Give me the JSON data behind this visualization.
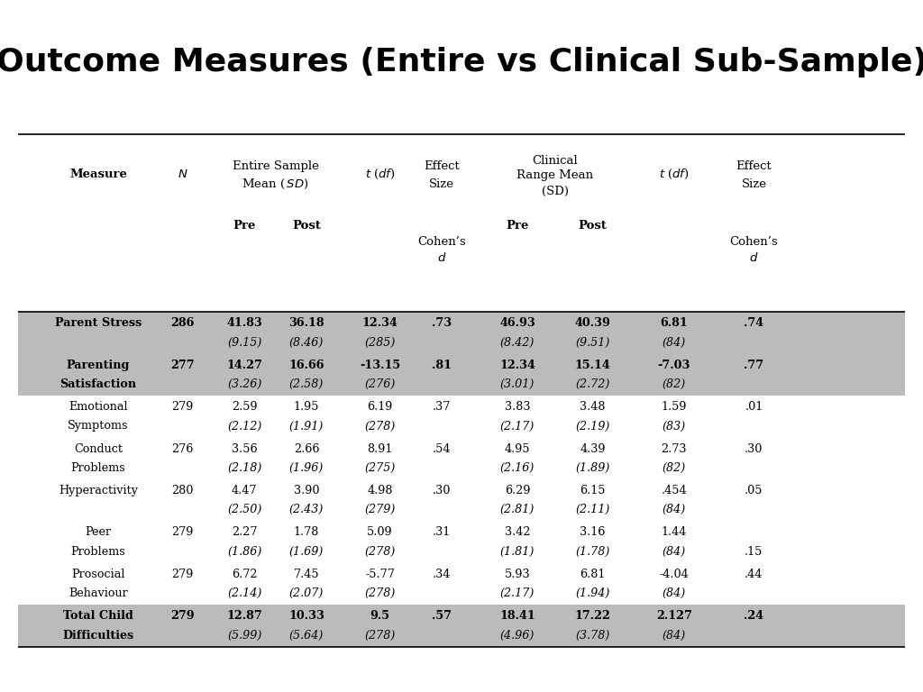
{
  "title": "Outcome Measures (Entire vs Clinical Sub-Sample)",
  "title_fontsize": 26,
  "title_fontweight": "bold",
  "background_color": "#ffffff",
  "shaded_bg": "#bbbbbb",
  "rows": [
    {
      "measure": [
        "Parent Stress",
        ""
      ],
      "n": "286",
      "pre": "41.83",
      "pre_sd": "(9.15)",
      "post": "36.18",
      "post_sd": "(8.46)",
      "t": "12.34",
      "t_df": "(285)",
      "cohens_d": ".73",
      "clin_pre": "46.93",
      "clin_pre_sd": "(8.42)",
      "clin_post": "40.39",
      "clin_post_sd": "(9.51)",
      "clin_t": "6.81",
      "clin_t_df": "(84)",
      "clin_cohens_d": ".74",
      "clin_cohens_d_row": 1,
      "shaded": true,
      "bold": true
    },
    {
      "measure": [
        "Parenting",
        "Satisfaction"
      ],
      "n": "277",
      "pre": "14.27",
      "pre_sd": "(3.26)",
      "post": "16.66",
      "post_sd": "(2.58)",
      "t": "-13.15",
      "t_df": "(276)",
      "cohens_d": ".81",
      "clin_pre": "12.34",
      "clin_pre_sd": "(3.01)",
      "clin_post": "15.14",
      "clin_post_sd": "(2.72)",
      "clin_t": "-7.03",
      "clin_t_df": "(82)",
      "clin_cohens_d": ".77",
      "clin_cohens_d_row": 1,
      "shaded": true,
      "bold": true
    },
    {
      "measure": [
        "Emotional",
        "Symptoms"
      ],
      "n": "279",
      "pre": "2.59",
      "pre_sd": "(2.12)",
      "post": "1.95",
      "post_sd": "(1.91)",
      "t": "6.19",
      "t_df": "(278)",
      "cohens_d": ".37",
      "clin_pre": "3.83",
      "clin_pre_sd": "(2.17)",
      "clin_post": "3.48",
      "clin_post_sd": "(2.19)",
      "clin_t": "1.59",
      "clin_t_df": "(83)",
      "clin_cohens_d": ".01",
      "clin_cohens_d_row": 1,
      "shaded": false,
      "bold": false
    },
    {
      "measure": [
        "Conduct",
        "Problems"
      ],
      "n": "276",
      "pre": "3.56",
      "pre_sd": "(2.18)",
      "post": "2.66",
      "post_sd": "(1.96)",
      "t": "8.91",
      "t_df": "(275)",
      "cohens_d": ".54",
      "clin_pre": "4.95",
      "clin_pre_sd": "(2.16)",
      "clin_post": "4.39",
      "clin_post_sd": "(1.89)",
      "clin_t": "2.73",
      "clin_t_df": "(82)",
      "clin_cohens_d": ".30",
      "clin_cohens_d_row": 1,
      "shaded": false,
      "bold": false
    },
    {
      "measure": [
        "Hyperactivity",
        ""
      ],
      "n": "280",
      "pre": "4.47",
      "pre_sd": "(2.50)",
      "post": "3.90",
      "post_sd": "(2.43)",
      "t": "4.98",
      "t_df": "(279)",
      "cohens_d": ".30",
      "clin_pre": "6.29",
      "clin_pre_sd": "(2.81)",
      "clin_post": "6.15",
      "clin_post_sd": "(2.11)",
      "clin_t": ".454",
      "clin_t_df": "(84)",
      "clin_cohens_d": ".05",
      "clin_cohens_d_row": 1,
      "shaded": false,
      "bold": false
    },
    {
      "measure": [
        "Peer",
        "Problems"
      ],
      "n": "279",
      "pre": "2.27",
      "pre_sd": "(1.86)",
      "post": "1.78",
      "post_sd": "(1.69)",
      "t": "5.09",
      "t_df": "(278)",
      "cohens_d": ".31",
      "clin_pre": "3.42",
      "clin_pre_sd": "(1.81)",
      "clin_post": "3.16",
      "clin_post_sd": "(1.78)",
      "clin_t": "1.44",
      "clin_t_df": "(84)",
      "clin_cohens_d": ".15",
      "clin_cohens_d_row": 2,
      "shaded": false,
      "bold": false
    },
    {
      "measure": [
        "Prosocial",
        "Behaviour"
      ],
      "n": "279",
      "pre": "6.72",
      "pre_sd": "(2.14)",
      "post": "7.45",
      "post_sd": "(2.07)",
      "t": "-5.77",
      "t_df": "(278)",
      "cohens_d": ".34",
      "clin_pre": "5.93",
      "clin_pre_sd": "(2.17)",
      "clin_post": "6.81",
      "clin_post_sd": "(1.94)",
      "clin_t": "-4.04",
      "clin_t_df": "(84)",
      "clin_cohens_d": ".44",
      "clin_cohens_d_row": 1,
      "shaded": false,
      "bold": false
    },
    {
      "measure": [
        "Total Child",
        "Difficulties"
      ],
      "n": "279",
      "pre": "12.87",
      "pre_sd": "(5.99)",
      "post": "10.33",
      "post_sd": "(5.64)",
      "t": "9.5",
      "t_df": "(278)",
      "cohens_d": ".57",
      "clin_pre": "18.41",
      "clin_pre_sd": "(4.96)",
      "clin_post": "17.22",
      "clin_post_sd": "(3.78)",
      "clin_t": "2.127",
      "clin_t_df": "(84)",
      "clin_cohens_d": ".24",
      "clin_cohens_d_row": 1,
      "shaded": true,
      "bold": true
    }
  ]
}
